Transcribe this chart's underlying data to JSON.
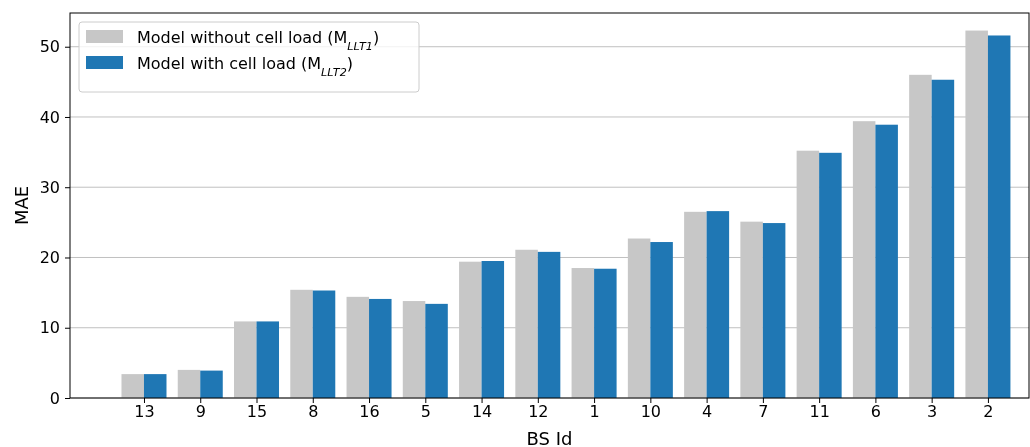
{
  "chart_data": {
    "type": "bar",
    "xlabel": "BS Id",
    "ylabel": "MAE",
    "categories": [
      "13",
      "9",
      "15",
      "8",
      "16",
      "5",
      "14",
      "12",
      "1",
      "10",
      "4",
      "7",
      "11",
      "6",
      "3",
      "2"
    ],
    "series": [
      {
        "name": "Model without cell load (M$_{LLT1}$)",
        "color": "#c7c7c7",
        "values": [
          3.4,
          4.0,
          10.9,
          15.4,
          14.4,
          13.8,
          19.4,
          21.1,
          18.5,
          22.7,
          26.5,
          25.1,
          35.2,
          39.4,
          46.0,
          52.3
        ]
      },
      {
        "name": "Model with cell load (M$_{LLT2}$)",
        "color": "#1f77b4",
        "values": [
          3.4,
          3.9,
          10.9,
          15.3,
          14.1,
          13.4,
          19.5,
          20.8,
          18.4,
          22.2,
          26.6,
          24.9,
          34.9,
          38.9,
          45.3,
          51.6
        ]
      }
    ],
    "ylim": [
      0,
      54.8
    ],
    "yticks": [
      0,
      10,
      20,
      30,
      40,
      50
    ],
    "grid": "y",
    "legend": "top left"
  }
}
